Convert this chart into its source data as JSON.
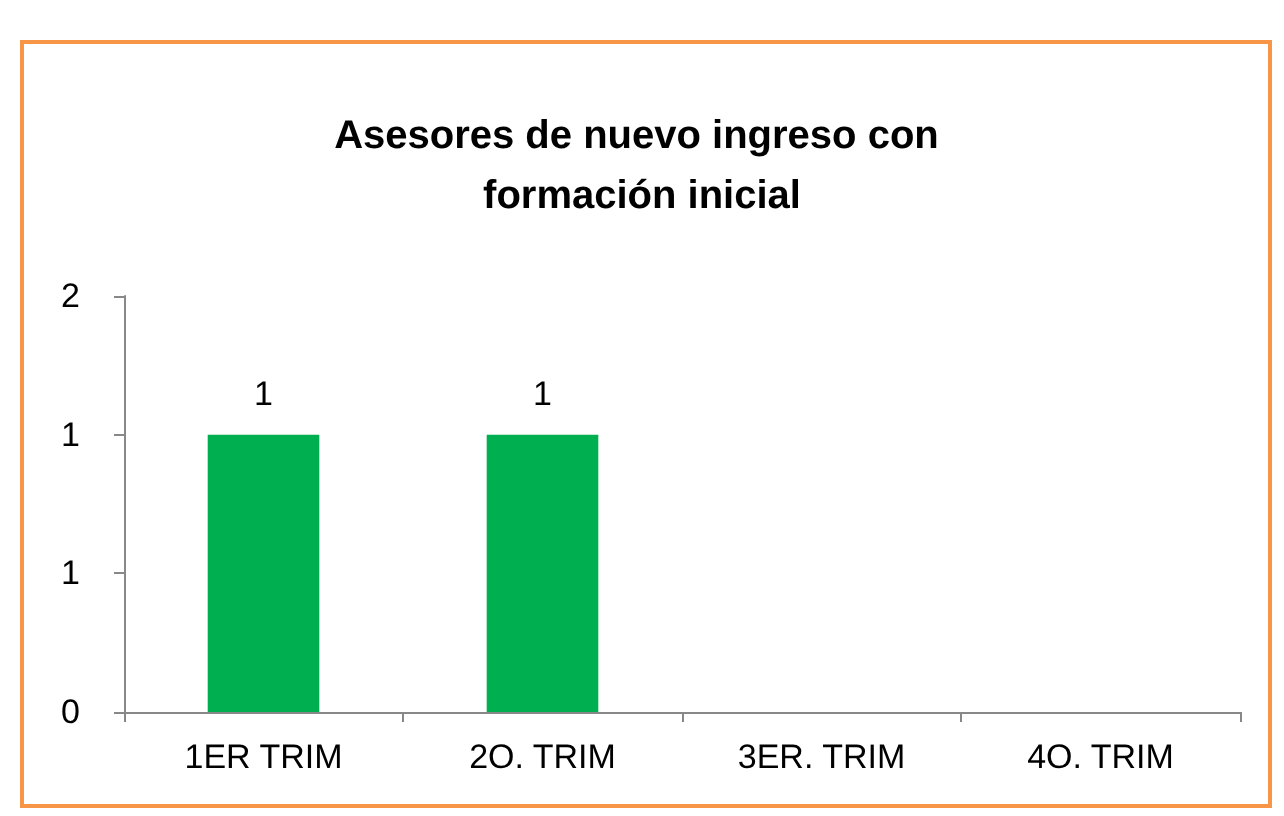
{
  "chart_data": {
    "type": "bar",
    "title": "Asesores de nuevo ingreso con formación inicial",
    "categories": [
      "1ER TRIM",
      "2O. TRIM",
      "3ER. TRIM",
      "4O. TRIM"
    ],
    "values": [
      1,
      1,
      0,
      0
    ],
    "value_labels": [
      "1",
      "1",
      null,
      null
    ],
    "color": "#00b050",
    "ylim": [
      0,
      1.5
    ],
    "yticks": [
      0,
      {
        "value": 0.5,
        "label": "1"
      },
      1,
      {
        "value": 1.5,
        "label": "2"
      }
    ],
    "grid": false
  }
}
